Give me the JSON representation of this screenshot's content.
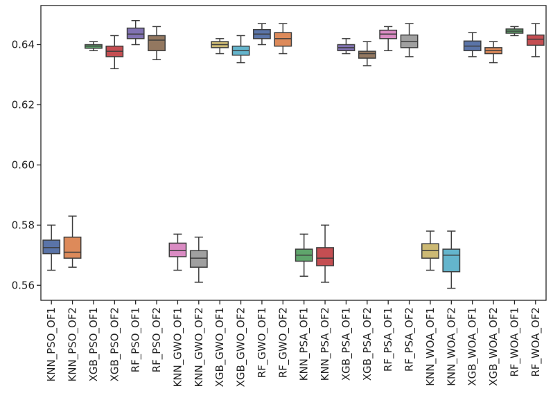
{
  "chart_data": {
    "type": "box",
    "title": "",
    "xlabel": "",
    "ylabel": "",
    "ylim": [
      0.555,
      0.653
    ],
    "yticks": [
      0.56,
      0.58,
      0.6,
      0.62,
      0.64
    ],
    "ytick_labels": [
      "0.56",
      "0.58",
      "0.60",
      "0.62",
      "0.64"
    ],
    "grid": false,
    "categories": [
      "KNN_PSO_OF1",
      "KNN_PSO_OF2",
      "XGB_PSO_OF1",
      "XGB_PSO_OF2",
      "RF_PSO_OF1",
      "RF_PSO_OF2",
      "KNN_GWO_OF1",
      "KNN_GWO_OF2",
      "XGB_GWO_OF1",
      "XGB_GWO_OF2",
      "RF_GWO_OF1",
      "RF_GWO_OF2",
      "KNN_PSA_OF1",
      "KNN_PSA_OF2",
      "XGB_PSA_OF1",
      "XGB_PSA_OF2",
      "RF_PSA_OF1",
      "RF_PSA_OF2",
      "KNN_WOA_OF1",
      "KNN_WOA_OF2",
      "XGB_WOA_OF1",
      "XGB_WOA_OF2",
      "RF_WOA_OF1",
      "RF_WOA_OF2"
    ],
    "boxes": [
      {
        "min": 0.565,
        "q1": 0.5705,
        "median": 0.5725,
        "q3": 0.575,
        "max": 0.58,
        "color": "#5a74a8"
      },
      {
        "min": 0.566,
        "q1": 0.569,
        "median": 0.571,
        "q3": 0.576,
        "max": 0.583,
        "color": "#dd8a5a"
      },
      {
        "min": 0.638,
        "q1": 0.6388,
        "median": 0.6395,
        "q3": 0.64,
        "max": 0.641,
        "color": "#5fa56c"
      },
      {
        "min": 0.632,
        "q1": 0.636,
        "median": 0.6378,
        "q3": 0.6395,
        "max": 0.643,
        "color": "#c44e52"
      },
      {
        "min": 0.64,
        "q1": 0.642,
        "median": 0.6435,
        "q3": 0.6455,
        "max": 0.648,
        "color": "#8172b2"
      },
      {
        "min": 0.635,
        "q1": 0.638,
        "median": 0.6415,
        "q3": 0.643,
        "max": 0.646,
        "color": "#937860"
      },
      {
        "min": 0.565,
        "q1": 0.5695,
        "median": 0.5715,
        "q3": 0.574,
        "max": 0.577,
        "color": "#da8bc3"
      },
      {
        "min": 0.561,
        "q1": 0.566,
        "median": 0.569,
        "q3": 0.5715,
        "max": 0.576,
        "color": "#a0a0a0"
      },
      {
        "min": 0.637,
        "q1": 0.639,
        "median": 0.64,
        "q3": 0.641,
        "max": 0.642,
        "color": "#ccb974"
      },
      {
        "min": 0.634,
        "q1": 0.6365,
        "median": 0.638,
        "q3": 0.6395,
        "max": 0.643,
        "color": "#64b5cd"
      },
      {
        "min": 0.64,
        "q1": 0.642,
        "median": 0.6435,
        "q3": 0.645,
        "max": 0.647,
        "color": "#5a74a8"
      },
      {
        "min": 0.637,
        "q1": 0.6395,
        "median": 0.642,
        "q3": 0.644,
        "max": 0.647,
        "color": "#dd8a5a"
      },
      {
        "min": 0.563,
        "q1": 0.568,
        "median": 0.57,
        "q3": 0.572,
        "max": 0.577,
        "color": "#5fa56c"
      },
      {
        "min": 0.561,
        "q1": 0.5665,
        "median": 0.569,
        "q3": 0.5725,
        "max": 0.58,
        "color": "#c44e52"
      },
      {
        "min": 0.637,
        "q1": 0.638,
        "median": 0.639,
        "q3": 0.64,
        "max": 0.642,
        "color": "#8172b2"
      },
      {
        "min": 0.633,
        "q1": 0.6355,
        "median": 0.637,
        "q3": 0.6378,
        "max": 0.641,
        "color": "#937860"
      },
      {
        "min": 0.638,
        "q1": 0.642,
        "median": 0.6435,
        "q3": 0.6448,
        "max": 0.646,
        "color": "#da8bc3"
      },
      {
        "min": 0.636,
        "q1": 0.639,
        "median": 0.641,
        "q3": 0.6432,
        "max": 0.647,
        "color": "#a0a0a0"
      },
      {
        "min": 0.565,
        "q1": 0.569,
        "median": 0.5715,
        "q3": 0.5738,
        "max": 0.578,
        "color": "#ccb974"
      },
      {
        "min": 0.559,
        "q1": 0.5645,
        "median": 0.57,
        "q3": 0.572,
        "max": 0.578,
        "color": "#64b5cd"
      },
      {
        "min": 0.636,
        "q1": 0.638,
        "median": 0.6395,
        "q3": 0.6412,
        "max": 0.644,
        "color": "#5a74a8"
      },
      {
        "min": 0.634,
        "q1": 0.637,
        "median": 0.638,
        "q3": 0.639,
        "max": 0.641,
        "color": "#dd8a5a"
      },
      {
        "min": 0.643,
        "q1": 0.6438,
        "median": 0.6445,
        "q3": 0.6452,
        "max": 0.646,
        "color": "#5fa56c"
      },
      {
        "min": 0.636,
        "q1": 0.6398,
        "median": 0.6418,
        "q3": 0.6432,
        "max": 0.647,
        "color": "#c44e52"
      }
    ]
  }
}
